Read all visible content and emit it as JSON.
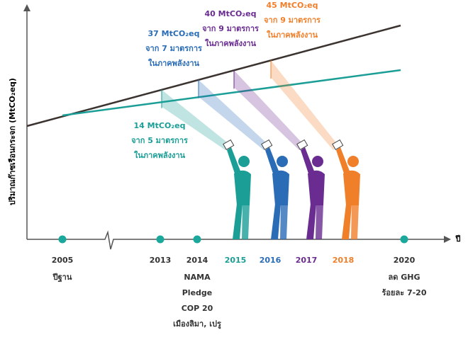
{
  "y_axis_label": "ปริมาณก๊าซเรือนกระจก (MtCO₂eq)",
  "x_axis_label": "ปี",
  "timeline": [
    {
      "year": "2005",
      "notes": [
        "ปีฐาน"
      ],
      "color": "#333333"
    },
    {
      "year": "2013",
      "notes": [],
      "color": "#333333"
    },
    {
      "year": "2014",
      "notes": [
        "NAMA",
        "Pledge",
        "COP 20",
        "เมืองลิมา, เปรู"
      ],
      "color": "#333333"
    },
    {
      "year": "2015",
      "notes": [],
      "color": "#1a9e96"
    },
    {
      "year": "2016",
      "notes": [],
      "color": "#2a6cb6"
    },
    {
      "year": "2017",
      "notes": [],
      "color": "#6a2c91"
    },
    {
      "year": "2018",
      "notes": [],
      "color": "#f07f2a"
    },
    {
      "year": "2020",
      "notes": [
        "ลด GHG",
        "ร้อยละ 7-20"
      ],
      "color": "#333333"
    }
  ],
  "annotations": [
    {
      "lines": [
        "14 MtCO₂eq",
        "จาก 5 มาตรการ",
        "ในภาคพลังงาน"
      ],
      "color": "#1a9e96"
    },
    {
      "lines": [
        "37 MtCO₂eq",
        "จาก 7 มาตรการ",
        "ในภาคพลังงาน"
      ],
      "color": "#2a6cb6"
    },
    {
      "lines": [
        "40 MtCO₂eq",
        "จาก 9 มาตรการ",
        "ในภาคพลังงาน"
      ],
      "color": "#6a2c91"
    },
    {
      "lines": [
        "45 MtCO₂eq",
        "จาก 9 มาตรการ",
        "ในภาคพลังงาน"
      ],
      "color": "#f07f2a"
    }
  ]
}
